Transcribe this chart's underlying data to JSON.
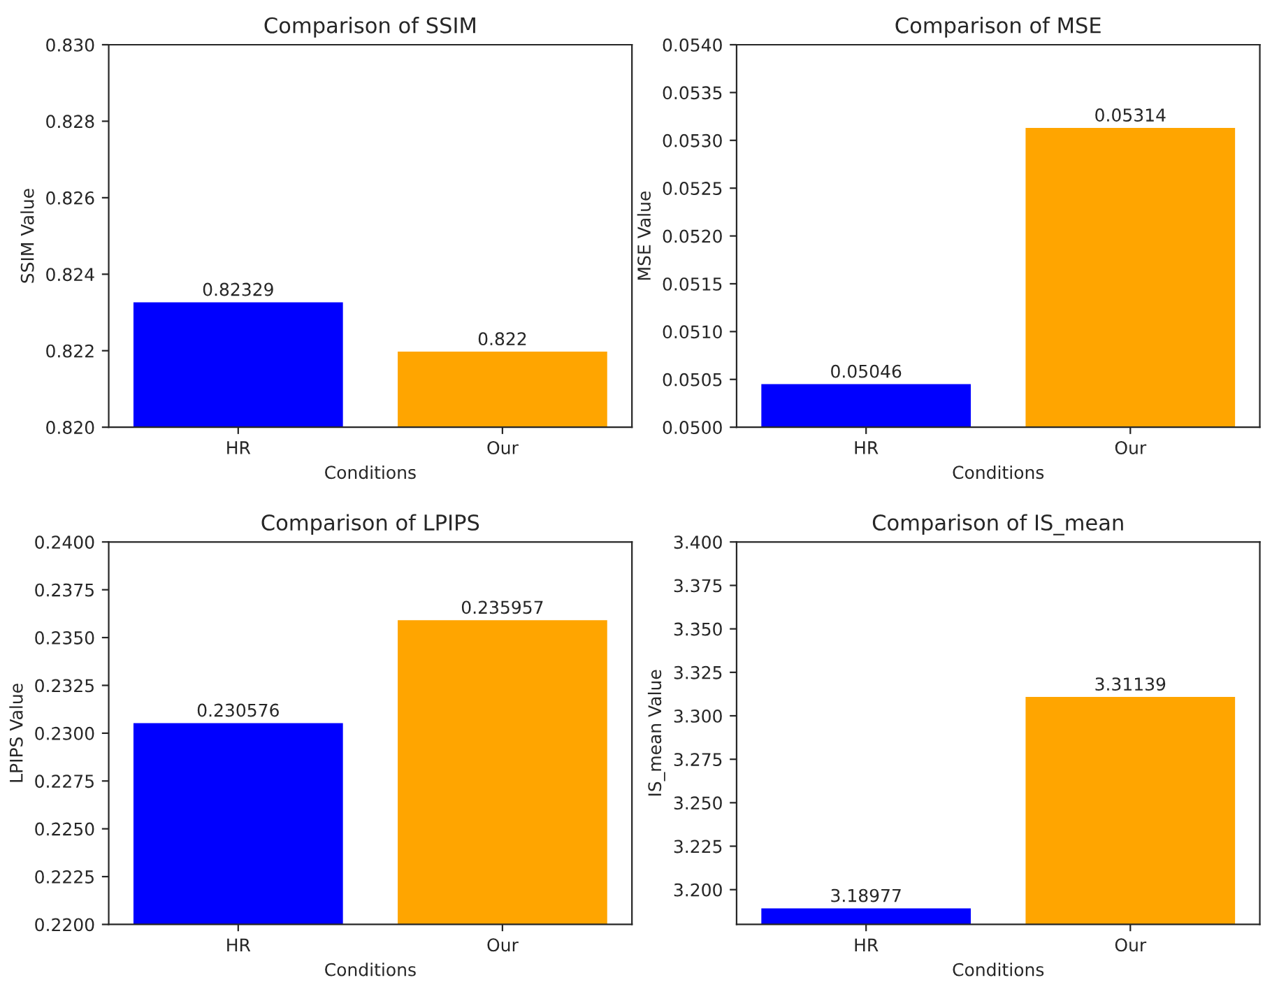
{
  "chart_data": [
    {
      "type": "bar",
      "title": "Comparison of SSIM",
      "xlabel": "Conditions",
      "ylabel": "SSIM Value",
      "categories": [
        "HR",
        "Our"
      ],
      "values": [
        0.82329,
        0.822
      ],
      "colors": [
        "#0000ff",
        "#ffa500"
      ],
      "ylim": [
        0.82,
        0.83
      ],
      "yticks": [
        {
          "value": 0.82,
          "label": "0.820"
        },
        {
          "value": 0.822,
          "label": "0.822"
        },
        {
          "value": 0.824,
          "label": "0.824"
        },
        {
          "value": 0.826,
          "label": "0.826"
        },
        {
          "value": 0.828,
          "label": "0.828"
        },
        {
          "value": 0.83,
          "label": "0.830"
        }
      ],
      "data_labels": true
    },
    {
      "type": "bar",
      "title": "Comparison of MSE",
      "xlabel": "Conditions",
      "ylabel": "MSE Value",
      "categories": [
        "HR",
        "Our"
      ],
      "values": [
        0.05046,
        0.05314
      ],
      "colors": [
        "#0000ff",
        "#ffa500"
      ],
      "ylim": [
        0.05,
        0.054
      ],
      "yticks": [
        {
          "value": 0.05,
          "label": "0.0500"
        },
        {
          "value": 0.0505,
          "label": "0.0505"
        },
        {
          "value": 0.051,
          "label": "0.0510"
        },
        {
          "value": 0.0515,
          "label": "0.0515"
        },
        {
          "value": 0.052,
          "label": "0.0520"
        },
        {
          "value": 0.0525,
          "label": "0.0525"
        },
        {
          "value": 0.053,
          "label": "0.0530"
        },
        {
          "value": 0.0535,
          "label": "0.0535"
        },
        {
          "value": 0.054,
          "label": "0.0540"
        }
      ],
      "data_labels": true
    },
    {
      "type": "bar",
      "title": "Comparison of LPIPS",
      "xlabel": "Conditions",
      "ylabel": "LPIPS Value",
      "categories": [
        "HR",
        "Our"
      ],
      "values": [
        0.230576,
        0.235957
      ],
      "colors": [
        "#0000ff",
        "#ffa500"
      ],
      "ylim": [
        0.22,
        0.24
      ],
      "yticks": [
        {
          "value": 0.22,
          "label": "0.2200"
        },
        {
          "value": 0.2225,
          "label": "0.2225"
        },
        {
          "value": 0.225,
          "label": "0.2250"
        },
        {
          "value": 0.2275,
          "label": "0.2275"
        },
        {
          "value": 0.23,
          "label": "0.2300"
        },
        {
          "value": 0.2325,
          "label": "0.2325"
        },
        {
          "value": 0.235,
          "label": "0.2350"
        },
        {
          "value": 0.2375,
          "label": "0.2375"
        },
        {
          "value": 0.24,
          "label": "0.2400"
        }
      ],
      "data_labels": true
    },
    {
      "type": "bar",
      "title": "Comparison of IS_mean",
      "xlabel": "Conditions",
      "ylabel": "IS_mean Value",
      "categories": [
        "HR",
        "Our"
      ],
      "values": [
        3.18977,
        3.31139
      ],
      "colors": [
        "#0000ff",
        "#ffa500"
      ],
      "ylim": [
        3.18,
        3.4
      ],
      "yticks": [
        {
          "value": 3.2,
          "label": "3.200"
        },
        {
          "value": 3.225,
          "label": "3.225"
        },
        {
          "value": 3.25,
          "label": "3.250"
        },
        {
          "value": 3.275,
          "label": "3.275"
        },
        {
          "value": 3.3,
          "label": "3.300"
        },
        {
          "value": 3.325,
          "label": "3.325"
        },
        {
          "value": 3.35,
          "label": "3.350"
        },
        {
          "value": 3.375,
          "label": "3.375"
        },
        {
          "value": 3.4,
          "label": "3.400"
        }
      ],
      "data_labels": true
    }
  ]
}
